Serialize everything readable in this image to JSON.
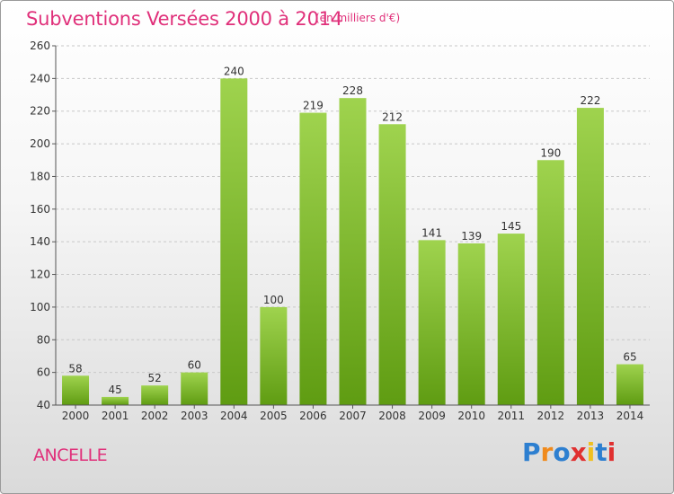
{
  "title": "Subventions Versées 2000 à 2014",
  "unit_note": "(en milliers d'€)",
  "commune": "ANCELLE",
  "logo": {
    "text": "Proxiti",
    "letter_colors": [
      "#2d7fd0",
      "#f08a1c",
      "#2d7fd0",
      "#e03030",
      "#f0c020",
      "#2d7fd0",
      "#e03030"
    ]
  },
  "colors": {
    "title": "#e0307a",
    "bar_light": "#9fd34e",
    "bar_dark": "#5f9c12",
    "grid": "#c8c8c8",
    "axis": "#555555"
  },
  "chart_data": {
    "type": "bar",
    "title": "Subventions Versées 2000 à 2014",
    "xlabel": "",
    "ylabel": "",
    "categories": [
      "2000",
      "2001",
      "2002",
      "2003",
      "2004",
      "2005",
      "2006",
      "2007",
      "2008",
      "2009",
      "2010",
      "2011",
      "2012",
      "2013",
      "2014"
    ],
    "values": [
      58,
      45,
      52,
      60,
      240,
      100,
      219,
      228,
      212,
      141,
      139,
      145,
      190,
      222,
      65
    ],
    "data_labels": [
      "58",
      "45",
      "52",
      "60",
      "240",
      "100",
      "219",
      "228",
      "212",
      "141",
      "139",
      "145",
      "190",
      "222",
      "65"
    ],
    "ylim": [
      40,
      260
    ],
    "yticks": [
      40,
      60,
      80,
      100,
      120,
      140,
      160,
      180,
      200,
      220,
      240,
      260
    ],
    "grid": true,
    "legend": "none"
  }
}
